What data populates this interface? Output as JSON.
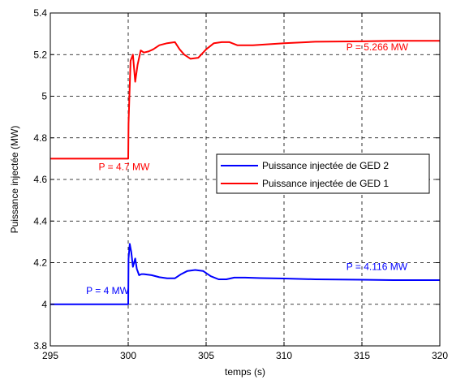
{
  "chart_data": {
    "type": "line",
    "xlabel": "temps (s)",
    "ylabel": "Puissance injectée (MW)",
    "xlim": [
      295,
      320
    ],
    "ylim": [
      3.8,
      5.4
    ],
    "xticks": [
      "295",
      "300",
      "305",
      "310",
      "315",
      "320"
    ],
    "yticks": [
      "3.8",
      "4",
      "4.2",
      "4.4",
      "4.6",
      "4.8",
      "5",
      "5.2",
      "5.4"
    ],
    "grid": true,
    "legend_position": "center-right",
    "series": [
      {
        "name": "Puissance injectée de GED 2",
        "color": "#0000ff",
        "x": [
          295,
          300,
          300.02,
          300.1,
          300.2,
          300.3,
          300.45,
          300.55,
          300.7,
          300.85,
          301.0,
          301.5,
          302.0,
          302.5,
          303.0,
          303.4,
          303.8,
          304.3,
          304.8,
          305.3,
          305.8,
          306.3,
          306.8,
          307.5,
          308.5,
          310,
          312,
          315,
          317,
          320
        ],
        "values": [
          4.0,
          4.0,
          4.22,
          4.29,
          4.25,
          4.18,
          4.22,
          4.17,
          4.14,
          4.145,
          4.145,
          4.14,
          4.13,
          4.125,
          4.125,
          4.145,
          4.16,
          4.165,
          4.16,
          4.135,
          4.12,
          4.12,
          4.128,
          4.128,
          4.126,
          4.124,
          4.12,
          4.118,
          4.116,
          4.116
        ]
      },
      {
        "name": "Puissance injectée de GED 1",
        "color": "#ff0000",
        "x": [
          295,
          300,
          300.02,
          300.15,
          300.3,
          300.45,
          300.6,
          300.8,
          301.0,
          301.3,
          301.6,
          302.0,
          302.5,
          303.0,
          303.3,
          303.6,
          304.0,
          304.5,
          305.0,
          305.5,
          306.0,
          306.5,
          307.0,
          308.0,
          310,
          312,
          315,
          317,
          320
        ],
        "values": [
          4.7,
          4.7,
          4.87,
          5.17,
          5.2,
          5.07,
          5.15,
          5.22,
          5.21,
          5.215,
          5.225,
          5.245,
          5.255,
          5.26,
          5.225,
          5.2,
          5.18,
          5.185,
          5.225,
          5.255,
          5.26,
          5.26,
          5.245,
          5.245,
          5.255,
          5.262,
          5.264,
          5.266,
          5.266
        ]
      }
    ],
    "annotations": [
      {
        "text": "P = 5.266 MW",
        "x": 314.0,
        "y": 5.22,
        "color": "#ff0000"
      },
      {
        "text": "P = 4.7 MW",
        "x": 298.1,
        "y": 4.645,
        "color": "#ff0000"
      },
      {
        "text": "P = 4 MW",
        "x": 297.3,
        "y": 4.05,
        "color": "#0000ff"
      },
      {
        "text": "P = 4.116 MW",
        "x": 314.0,
        "y": 4.165,
        "color": "#0000ff"
      }
    ]
  }
}
